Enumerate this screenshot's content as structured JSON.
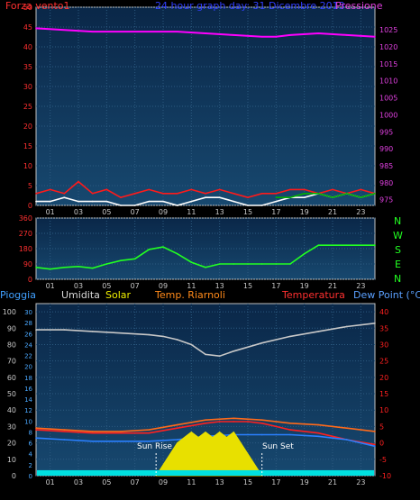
{
  "header": {
    "left_label": "Forza vento1",
    "title": "24 hour graph day: 31 Dicembre 2013",
    "right_label": "Pressione"
  },
  "middle_panel": {
    "dir_letters": [
      "N",
      "W",
      "S",
      "E",
      "N"
    ]
  },
  "bottom_header": {
    "labels": [
      "Pioggia",
      "Umidita",
      "Solar",
      "Temp. Riarnoli",
      "Temperatura",
      "Dew Point (°C)"
    ]
  },
  "annotations": {
    "sunrise": "Sun Rise",
    "sunset": "Sun Set"
  },
  "colors": {
    "wind": "#ff1a1a",
    "gust_green": "#00b000",
    "wind_white": "#ffffff",
    "pressure": "#ff00ff",
    "direction": "#22ff22",
    "humidity": "#c8c8c8",
    "temperature": "#ff2020",
    "temp_riarnoli": "#ff6a1a",
    "dew_point": "#2a80ff",
    "solar": "#e8e000",
    "rain": "#00e0e0",
    "left_axis": "#ff3030",
    "right_axis": "#e040e0",
    "title": "#3040ff"
  },
  "chart_data": [
    {
      "type": "line",
      "x_ticks": [
        "01",
        "03",
        "05",
        "07",
        "09",
        "11",
        "13",
        "15",
        "17",
        "19",
        "21",
        "23"
      ],
      "left_axis": {
        "ticks": [
          0,
          5,
          10,
          15,
          20,
          25,
          30,
          35,
          40,
          45,
          50
        ],
        "ylim": [
          0,
          50
        ]
      },
      "right_axis": {
        "ticks": [
          975,
          980,
          985,
          990,
          995,
          1000,
          1005,
          1010,
          1015,
          1020,
          1025
        ],
        "ylim": [
          973.3,
          1031.7
        ]
      },
      "series": [
        {
          "name": "Pressione",
          "axis": "right",
          "x": [
            0,
            2,
            4,
            6,
            8,
            10,
            12,
            14,
            16,
            17,
            18,
            20,
            22,
            24
          ],
          "values": [
            1025.5,
            1025,
            1024.5,
            1024.5,
            1024.5,
            1024.5,
            1024,
            1023.5,
            1023,
            1023,
            1023.5,
            1024,
            1023.5,
            1023
          ]
        },
        {
          "name": "Forza vento1",
          "axis": "left",
          "x": [
            0,
            1,
            2,
            3,
            4,
            5,
            6,
            7,
            8,
            9,
            10,
            11,
            12,
            13,
            14,
            15,
            16,
            17,
            18,
            19,
            20,
            21,
            22,
            23,
            24
          ],
          "values": [
            3,
            4,
            3,
            6,
            3,
            4,
            2,
            3,
            4,
            3,
            3,
            4,
            3,
            4,
            3,
            2,
            3,
            3,
            4,
            4,
            3,
            4,
            3,
            4,
            3
          ]
        },
        {
          "x": [
            0,
            1,
            2,
            3,
            4,
            5,
            6,
            7,
            8,
            9,
            10,
            11,
            12,
            13,
            14,
            15,
            16,
            17,
            18,
            19,
            20,
            21,
            22,
            23,
            24
          ],
          "values": [
            1,
            1,
            2,
            1,
            1,
            1,
            0,
            0,
            1,
            1,
            0,
            1,
            2,
            2,
            1,
            0,
            0,
            1,
            2,
            2,
            3,
            2,
            3,
            2,
            3
          ]
        },
        {
          "x": [
            17,
            18,
            19,
            20,
            21,
            22,
            23,
            24
          ],
          "values": [
            2,
            2,
            3,
            3,
            2,
            3,
            2,
            3
          ]
        }
      ]
    },
    {
      "type": "line",
      "x_ticks": [
        "01",
        "03",
        "05",
        "07",
        "09",
        "11",
        "13",
        "15",
        "17",
        "19",
        "21",
        "23"
      ],
      "left_axis": {
        "ticks": [
          0,
          90,
          180,
          270,
          360
        ],
        "ylim": [
          0,
          360
        ]
      },
      "series": [
        {
          "x": [
            0,
            1,
            2,
            3,
            4,
            5,
            6,
            7,
            8,
            9,
            10,
            11,
            12,
            13,
            14,
            15,
            16,
            17,
            18,
            19,
            20,
            21,
            22,
            23,
            24
          ],
          "values": [
            70,
            60,
            70,
            75,
            65,
            90,
            110,
            120,
            175,
            190,
            150,
            100,
            70,
            90,
            90,
            90,
            90,
            90,
            90,
            150,
            200,
            200,
            200,
            200,
            200
          ]
        }
      ]
    },
    {
      "type": "line",
      "x_ticks": [
        "01",
        "03",
        "05",
        "07",
        "09",
        "11",
        "13",
        "15",
        "17",
        "19",
        "21",
        "23"
      ],
      "left_axis": {
        "ticks": [
          0,
          10,
          20,
          30,
          40,
          50,
          60,
          70,
          80,
          90,
          100
        ],
        "ylim": [
          0,
          105
        ]
      },
      "inner_axis": {
        "ticks": [
          0,
          2,
          4,
          6,
          8,
          10,
          12,
          14,
          16,
          18,
          20,
          22,
          24,
          26,
          28,
          30
        ],
        "ylim": [
          0,
          31.5
        ]
      },
      "right_axis": {
        "ticks": [
          -10,
          -5,
          0,
          5,
          10,
          15,
          20,
          25,
          30,
          35,
          40
        ],
        "ylim": [
          -10,
          42.5
        ]
      },
      "series": [
        {
          "name": "Umidita",
          "axis": "left",
          "x": [
            0,
            2,
            4,
            6,
            8,
            9,
            10,
            11,
            12,
            13,
            14,
            16,
            18,
            20,
            22,
            24
          ],
          "values": [
            89,
            89,
            88,
            87,
            86,
            85,
            83,
            80,
            74,
            73,
            76,
            81,
            85,
            88,
            91,
            93
          ]
        },
        {
          "name": "Temperatura",
          "axis": "right",
          "x": [
            0,
            2,
            4,
            6,
            8,
            10,
            12,
            13,
            14,
            15,
            16,
            17,
            18,
            20,
            22,
            24
          ],
          "values": [
            4,
            3.5,
            3,
            3,
            3,
            4.5,
            6,
            6.5,
            6.5,
            6.5,
            6,
            5,
            4,
            3,
            1,
            -0.5
          ]
        },
        {
          "name": "Temp. Riarnoli",
          "axis": "right",
          "x": [
            0,
            2,
            4,
            6,
            8,
            10,
            12,
            14,
            16,
            18,
            20,
            22,
            24
          ],
          "values": [
            4.5,
            4,
            3.5,
            3.5,
            4,
            5.5,
            7,
            7.5,
            7,
            6,
            5.5,
            4.5,
            3.5
          ]
        },
        {
          "name": "Dew Point (°C)",
          "axis": "right",
          "x": [
            0,
            2,
            4,
            6,
            8,
            10,
            12,
            14,
            16,
            18,
            20,
            22,
            24
          ],
          "values": [
            1.5,
            1,
            0.5,
            0.5,
            0.5,
            1,
            2,
            2.5,
            2.5,
            2.5,
            2,
            1,
            -1
          ]
        },
        {
          "name": "Solar",
          "axis": "inner",
          "x": [
            8.5,
            9,
            9.5,
            10,
            10.5,
            11,
            11.5,
            12,
            12.5,
            13,
            13.5,
            14,
            14.5,
            15,
            15.5,
            16
          ],
          "values": [
            0,
            2,
            4,
            6,
            7,
            8,
            7,
            8,
            7,
            8,
            7,
            8,
            6,
            4,
            2,
            0
          ]
        },
        {
          "name": "Pioggia",
          "axis": "inner",
          "x": [
            0,
            24
          ],
          "values": [
            0.5,
            0.5
          ]
        }
      ]
    }
  ]
}
